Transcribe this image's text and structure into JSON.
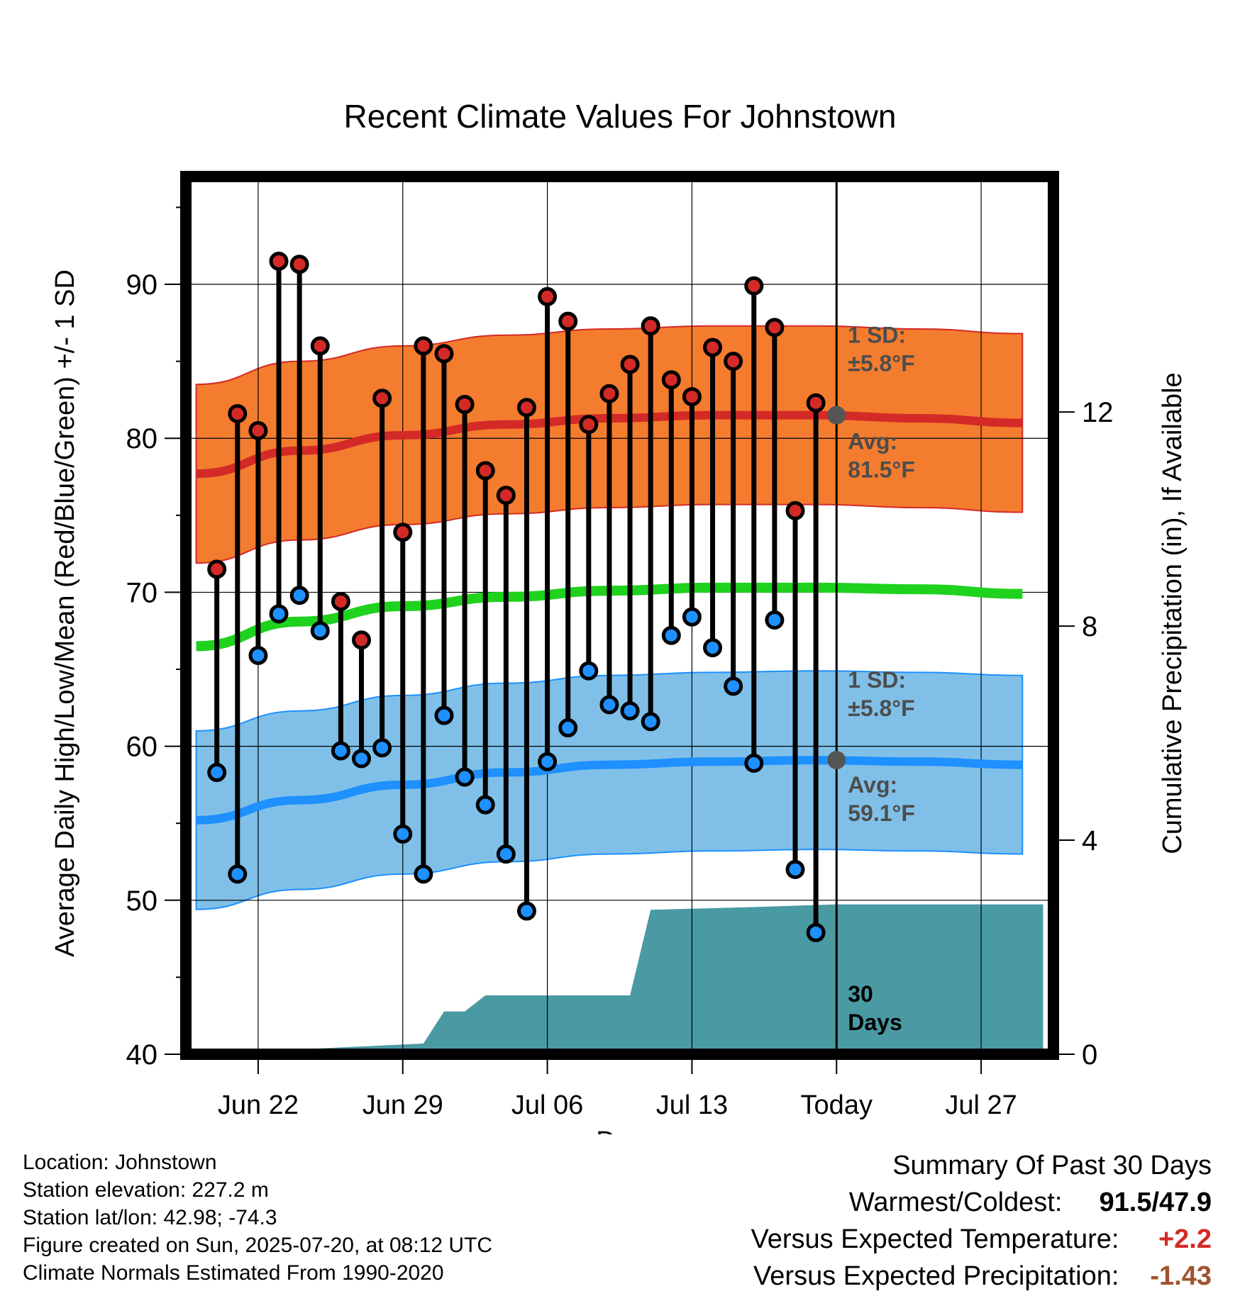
{
  "chart_data": {
    "type": "line",
    "title": "Recent Climate Values For Johnstown",
    "xlabel": "Day",
    "ylabel": "Average Daily High/Low/Mean (Red/Blue/Green) +/- 1 SD",
    "y2label": "Cumulative Precipitation (in), If Available",
    "ylim": [
      40,
      97
    ],
    "y2lim": [
      0,
      16.4
    ],
    "yticks": [
      "40",
      "50",
      "60",
      "70",
      "80",
      "90"
    ],
    "y2ticks": [
      "0",
      "4",
      "8",
      "12"
    ],
    "xticks": [
      "Jun 22",
      "Jun 29",
      "Jul 06",
      "Jul 13",
      "Today",
      "Jul 27"
    ],
    "x_range_days": [
      "2025-06-18 12:00",
      "2025-07-30 12:00"
    ],
    "today": "2025-07-20",
    "grid": true,
    "observed": {
      "dates": [
        "2025-06-20",
        "2025-06-21",
        "2025-06-22",
        "2025-06-23",
        "2025-06-24",
        "2025-06-25",
        "2025-06-26",
        "2025-06-27",
        "2025-06-28",
        "2025-06-29",
        "2025-06-30",
        "2025-07-01",
        "2025-07-02",
        "2025-07-03",
        "2025-07-04",
        "2025-07-05",
        "2025-07-06",
        "2025-07-07",
        "2025-07-08",
        "2025-07-09",
        "2025-07-10",
        "2025-07-11",
        "2025-07-12",
        "2025-07-13",
        "2025-07-14",
        "2025-07-15",
        "2025-07-16",
        "2025-07-17",
        "2025-07-18",
        "2025-07-19"
      ],
      "high": [
        71.5,
        81.6,
        80.5,
        91.5,
        91.3,
        86.0,
        69.4,
        66.9,
        82.6,
        73.9,
        86.0,
        85.5,
        82.2,
        77.9,
        76.3,
        82.0,
        89.2,
        87.6,
        80.9,
        82.9,
        84.8,
        87.3,
        83.8,
        82.7,
        85.9,
        85.0,
        89.9,
        87.2,
        75.3,
        82.3
      ],
      "low": [
        58.3,
        51.7,
        65.9,
        68.6,
        69.8,
        67.5,
        59.7,
        59.2,
        59.9,
        54.3,
        51.7,
        62.0,
        58.0,
        56.2,
        53.0,
        49.3,
        59.0,
        61.2,
        64.9,
        62.7,
        62.3,
        61.6,
        67.2,
        68.4,
        66.4,
        63.9,
        58.9,
        68.2,
        52.0,
        47.9
      ]
    },
    "normals": {
      "dates": [
        "2025-06-19",
        "2025-06-24",
        "2025-06-29",
        "2025-07-04",
        "2025-07-09",
        "2025-07-14",
        "2025-07-19",
        "2025-07-24",
        "2025-07-29"
      ],
      "avg_high": [
        77.7,
        79.2,
        80.2,
        80.9,
        81.3,
        81.5,
        81.5,
        81.3,
        81.0
      ],
      "avg_low": [
        55.2,
        56.5,
        57.5,
        58.3,
        58.8,
        59.0,
        59.1,
        59.0,
        58.8
      ],
      "avg_mean": [
        66.5,
        68.1,
        69.1,
        69.7,
        70.1,
        70.3,
        70.3,
        70.2,
        69.9
      ],
      "sd": 5.8
    },
    "precip_cumulative": {
      "dates": [
        "2025-06-19",
        "2025-06-30",
        "2025-07-01",
        "2025-07-02",
        "2025-07-03",
        "2025-07-10",
        "2025-07-11",
        "2025-07-16",
        "2025-07-20",
        "2025-07-30"
      ],
      "values": [
        0.0,
        0.2,
        0.8,
        0.8,
        1.1,
        1.1,
        2.7,
        2.75,
        2.8,
        2.8
      ]
    },
    "annotations": {
      "high_sd_label": [
        "1 SD:",
        "±5.8°F"
      ],
      "high_avg_label": [
        "Avg:",
        "81.5°F"
      ],
      "low_sd_label": [
        "1 SD:",
        "±5.8°F"
      ],
      "low_avg_label": [
        "Avg:",
        "59.1°F"
      ],
      "precip_label": [
        "30",
        "Days"
      ]
    },
    "colors": {
      "high_band": "#f47c2e",
      "high_line": "#d32a27",
      "low_band": "#80c0e8",
      "low_line": "#1e90ff",
      "mean_line": "#1ed21e",
      "precip": "#4a9aa4",
      "high_dot": "#d32a27",
      "low_dot": "#1e90ff",
      "label_gray": "#4d4d4d"
    }
  },
  "info": {
    "location": "Location: Johnstown",
    "elevation": "Station elevation: 227.2 m",
    "latlon": "Station lat/lon: 42.98; -74.3",
    "created": "Figure created on Sun, 2025-07-20, at 08:12 UTC",
    "normals": "Climate Normals Estimated From 1990-2020"
  },
  "summary": {
    "title": "Summary Of Past 30 Days",
    "warm_cold_label": "Warmest/Coldest:",
    "warm_cold_value": "91.5/47.9",
    "temp_label": "Versus Expected Temperature:",
    "temp_value": "+2.2",
    "temp_color": "#d32a27",
    "precip_label": "Versus Expected Precipitation:",
    "precip_value": "-1.43",
    "precip_color": "#a0522d"
  }
}
